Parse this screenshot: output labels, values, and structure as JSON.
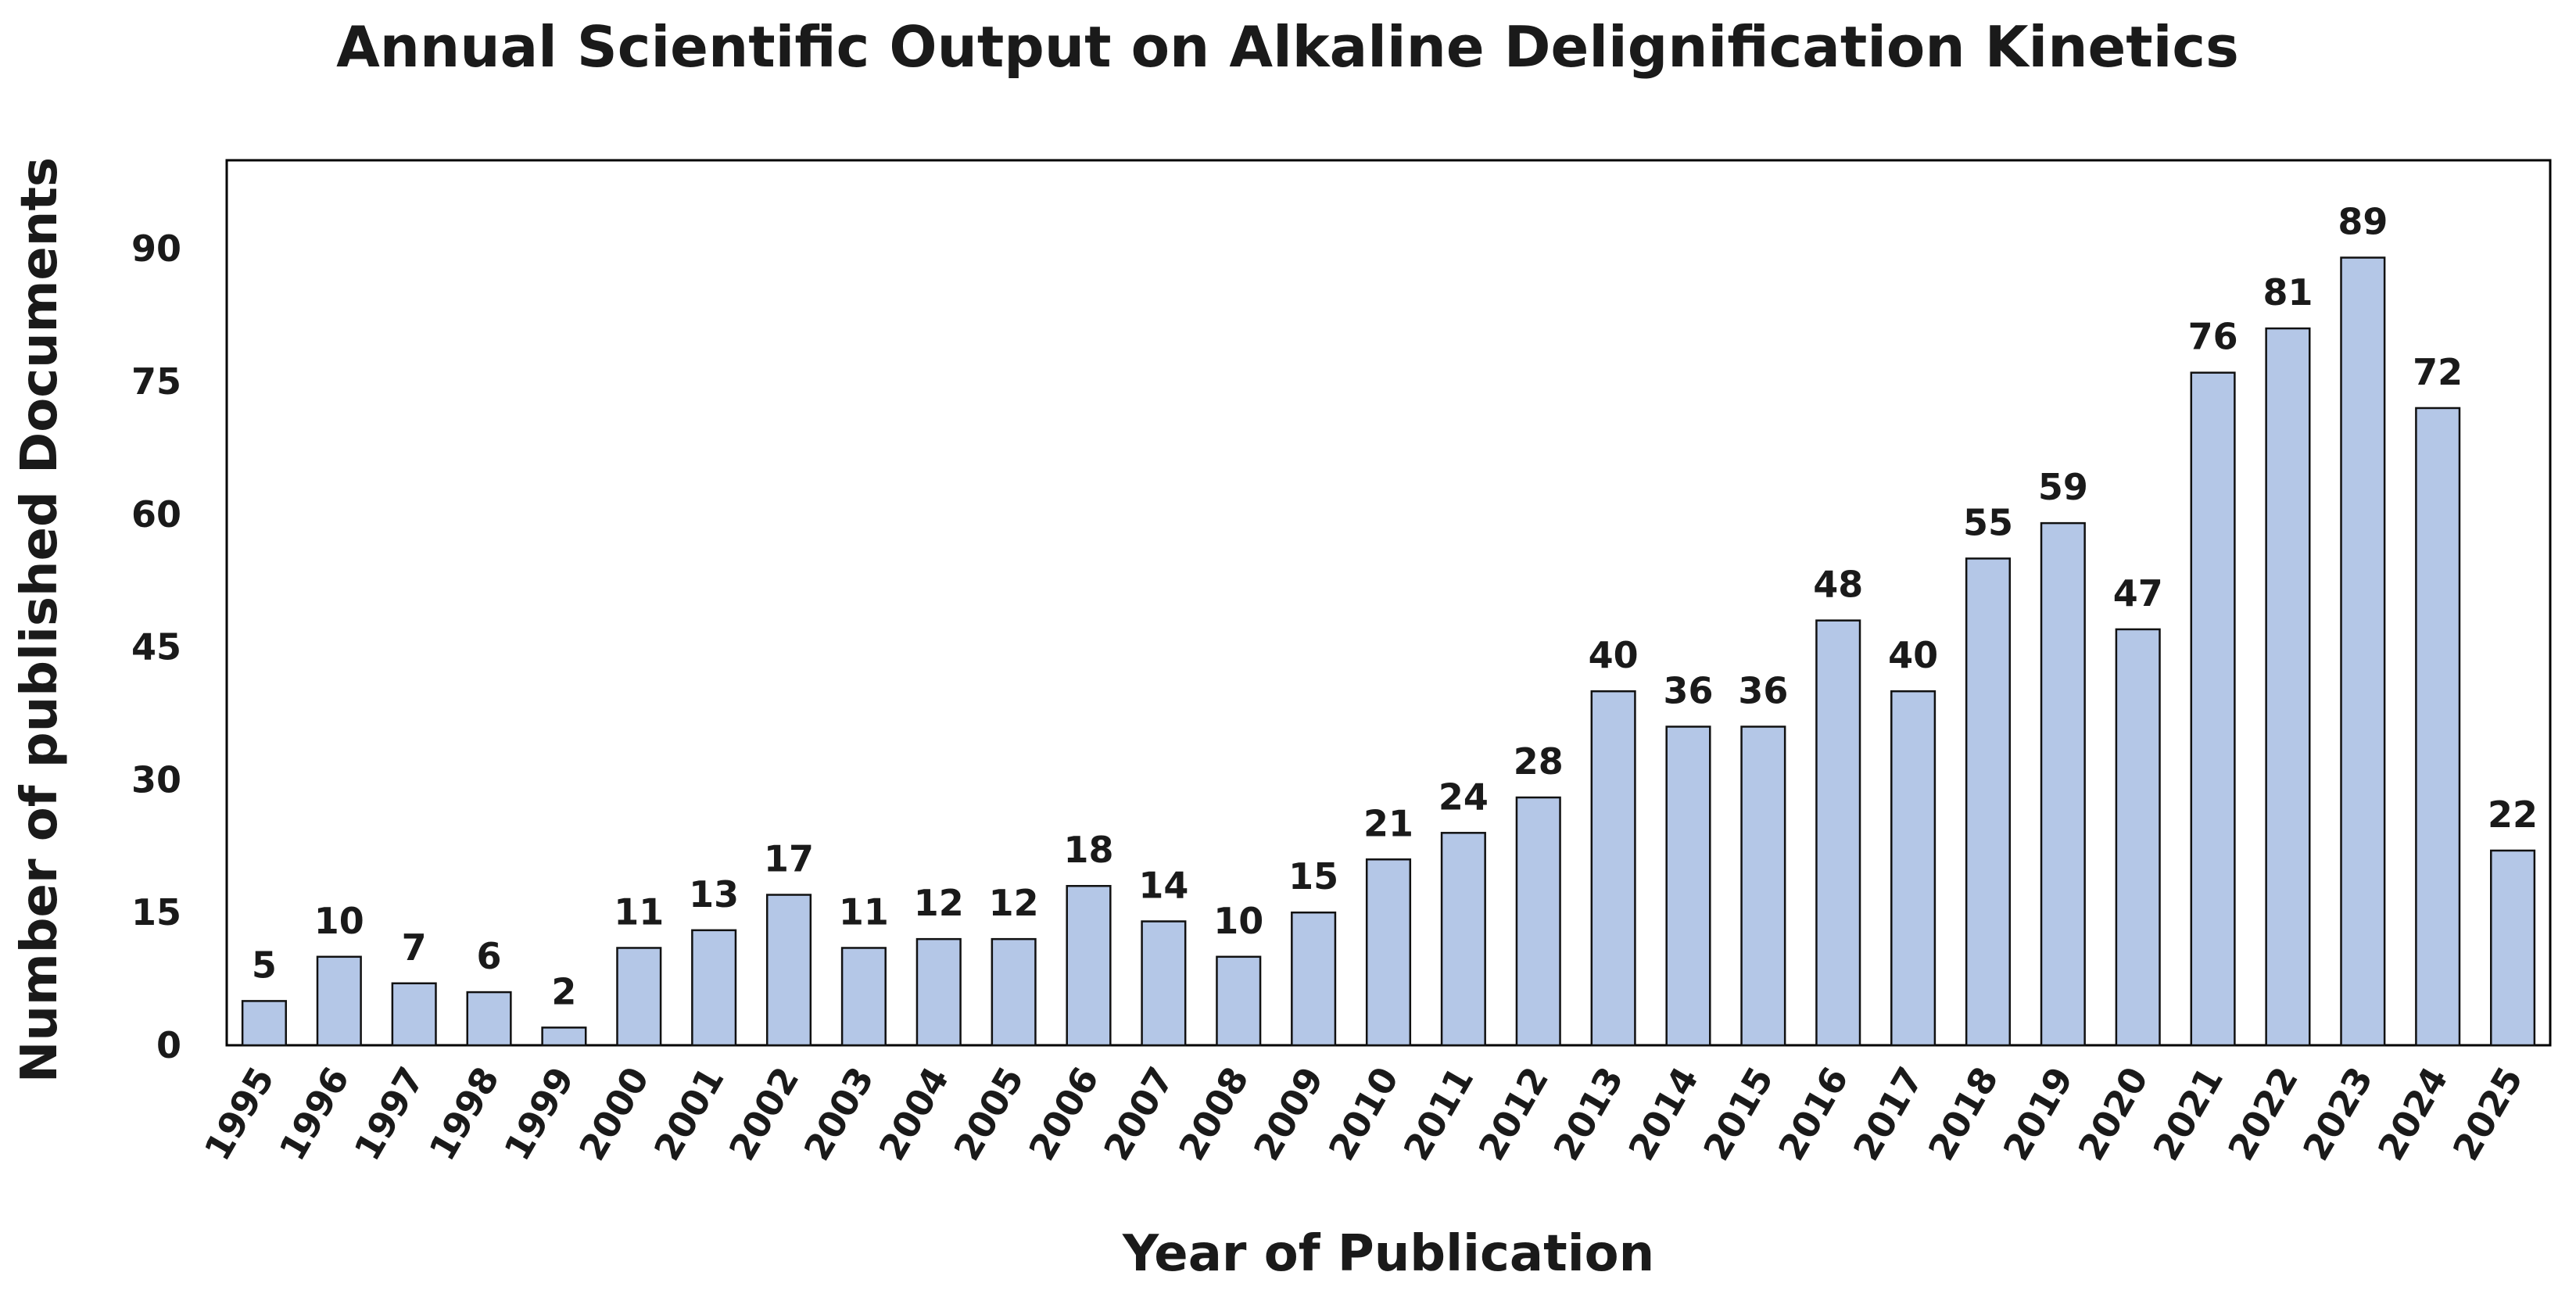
{
  "chart_data": {
    "type": "bar",
    "title": "Annual Scientific Output on Alkaline Delignification Kinetics",
    "xlabel": "Year of Publication",
    "ylabel": "Number of published Documents",
    "categories": [
      "1995",
      "1996",
      "1997",
      "1998",
      "1999",
      "2000",
      "2001",
      "2002",
      "2003",
      "2004",
      "2005",
      "2006",
      "2007",
      "2008",
      "2009",
      "2010",
      "2011",
      "2012",
      "2013",
      "2014",
      "2015",
      "2016",
      "2017",
      "2018",
      "2019",
      "2020",
      "2021",
      "2022",
      "2023",
      "2024",
      "2025"
    ],
    "values": [
      5,
      10,
      7,
      6,
      2,
      11,
      13,
      17,
      11,
      12,
      12,
      18,
      14,
      10,
      15,
      21,
      24,
      28,
      40,
      36,
      36,
      48,
      40,
      55,
      59,
      47,
      76,
      81,
      89,
      72,
      22
    ],
    "data_labels": [
      "5",
      "10",
      "7",
      "6",
      "2",
      "11",
      "13",
      "17",
      "11",
      "12",
      "12",
      "18",
      "14",
      "10",
      "15",
      "21",
      "24",
      "28",
      "40",
      "36",
      "36",
      "48",
      "40",
      "55",
      "59",
      "47",
      "76",
      "81",
      "89",
      "72",
      "22"
    ],
    "yticks": [
      "0",
      "15",
      "30",
      "45",
      "60",
      "75",
      "90"
    ],
    "ylim": [
      0,
      100
    ],
    "grid": false,
    "legend": "none",
    "colors": {
      "bar_fill": "#b4c7e7",
      "bar_stroke": "#111111",
      "axis": "#000000",
      "text": "#1a1a1a"
    }
  }
}
